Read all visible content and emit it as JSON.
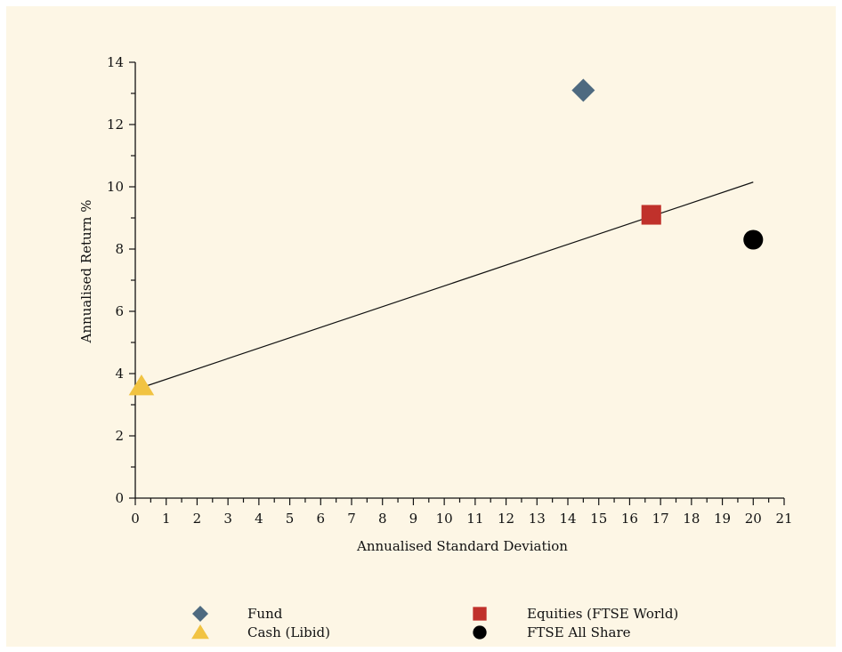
{
  "chart_data": {
    "type": "scatter",
    "xlabel": "Annualised Standard Deviation",
    "ylabel": "Annualised Return %",
    "xlim": [
      0,
      21
    ],
    "ylim": [
      0,
      14
    ],
    "xticks": [
      "0",
      "1",
      "2",
      "3",
      "4",
      "5",
      "6",
      "7",
      "8",
      "9",
      "10",
      "11",
      "12",
      "13",
      "14",
      "15",
      "16",
      "17",
      "18",
      "19",
      "20",
      "21"
    ],
    "yticks": [
      "0",
      "2",
      "4",
      "6",
      "8",
      "10",
      "12",
      "14"
    ],
    "grid": false,
    "legend_position": "bottom",
    "series": [
      {
        "name": "Fund",
        "marker": "diamond",
        "color": "#4e6a80",
        "x": 14.5,
        "y": 13.1
      },
      {
        "name": "Equities (FTSE World)",
        "marker": "square",
        "color": "#c0312b",
        "x": 16.7,
        "y": 9.1
      },
      {
        "name": "Cash (Libid)",
        "marker": "triangle",
        "color": "#f1c342",
        "x": 0.2,
        "y": 3.6
      },
      {
        "name": "FTSE All Share",
        "marker": "circle",
        "color": "#000000",
        "x": 20.0,
        "y": 8.3
      }
    ],
    "trend_line": {
      "x": [
        0.2,
        20.0
      ],
      "y": [
        3.55,
        10.15
      ]
    }
  }
}
